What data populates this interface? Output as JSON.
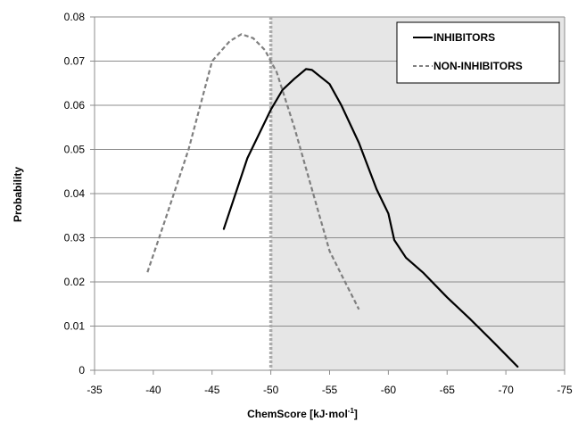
{
  "chart_data": {
    "type": "line",
    "title": "",
    "xlabel": "ChemScore [kJ·mol",
    "xlabel_superscript": "-1",
    "xlabel_suffix": "]",
    "ylabel": "Probability",
    "xlim": [
      -35,
      -75
    ],
    "ylim": [
      0,
      0.08
    ],
    "x_ticks": [
      "-35",
      "-40",
      "-45",
      "-50",
      "-55",
      "-60",
      "-65",
      "-70",
      "-75"
    ],
    "y_ticks": [
      "0",
      "0.01",
      "0.02",
      "0.03",
      "0.04",
      "0.05",
      "0.06",
      "0.07",
      "0.08"
    ],
    "x_tick_values": [
      -35,
      -40,
      -45,
      -50,
      -55,
      -60,
      -65,
      -70,
      -75
    ],
    "y_tick_values": [
      0,
      0.01,
      0.02,
      0.03,
      0.04,
      0.05,
      0.06,
      0.07,
      0.08
    ],
    "grid": "horizontal",
    "legend_position": "top-right",
    "threshold": {
      "x": -50,
      "shaded_side": "more-negative",
      "color": "#ababab"
    },
    "shaded_color": "#e6e6e6",
    "series": [
      {
        "name": "INHIBITORS",
        "style": "solid",
        "color": "#000000",
        "x": [
          -46,
          -48,
          -50,
          -51,
          -52,
          -53,
          -53.5,
          -55,
          -56,
          -57.5,
          -59,
          -60,
          -60.5,
          -61.5,
          -63,
          -65,
          -67,
          -69,
          -71
        ],
        "y": [
          0.032,
          0.048,
          0.059,
          0.0635,
          0.066,
          0.0682,
          0.068,
          0.0648,
          0.06,
          0.0515,
          0.041,
          0.0355,
          0.0295,
          0.0255,
          0.022,
          0.0165,
          0.0115,
          0.0062,
          0.0008
        ]
      },
      {
        "name": "NON-INHIBITORS",
        "style": "dashed",
        "color": "#7f7f7f",
        "x": [
          -39.5,
          -41,
          -43,
          -45,
          -46.5,
          -47.5,
          -48.5,
          -49.5,
          -50.5,
          -52,
          -53.5,
          -55,
          -56.5,
          -57.5
        ],
        "y": [
          0.0222,
          0.034,
          0.05,
          0.07,
          0.0745,
          0.0761,
          0.0752,
          0.0725,
          0.0675,
          0.055,
          0.041,
          0.027,
          0.019,
          0.0138
        ]
      }
    ]
  }
}
